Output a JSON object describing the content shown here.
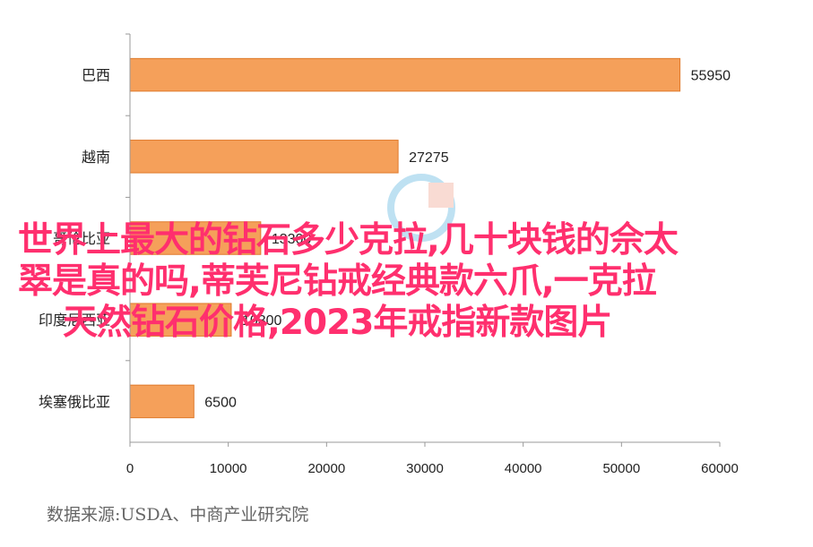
{
  "chart_data": {
    "type": "bar",
    "orientation": "horizontal",
    "categories": [
      "巴西",
      "越南",
      "哥伦比亚",
      "印度尼西亚",
      "埃塞俄比亚"
    ],
    "values": [
      55950,
      27275,
      13300,
      10300,
      6500
    ],
    "value_labels": [
      "55950",
      "27275",
      "13300",
      "10300",
      "6500"
    ],
    "xlim": [
      0,
      60000
    ],
    "xticks": [
      "0",
      "10000",
      "20000",
      "30000",
      "40000",
      "50000",
      "60000"
    ],
    "bar_color": "#f5a05a",
    "bar_edge_color": "#e07a2c",
    "grid": false
  },
  "overlay_title": {
    "line1": "世界上最大的钻石多少克拉,几十块钱的佘太",
    "line2": "翠是真的吗,蒂芙尼钻戒经典款六爪,一克拉",
    "line3": "天然钻石价格,2023年戒指新款图片",
    "color": "#ff2f6e"
  },
  "source": "数据来源:USDA、中商产业研究院"
}
